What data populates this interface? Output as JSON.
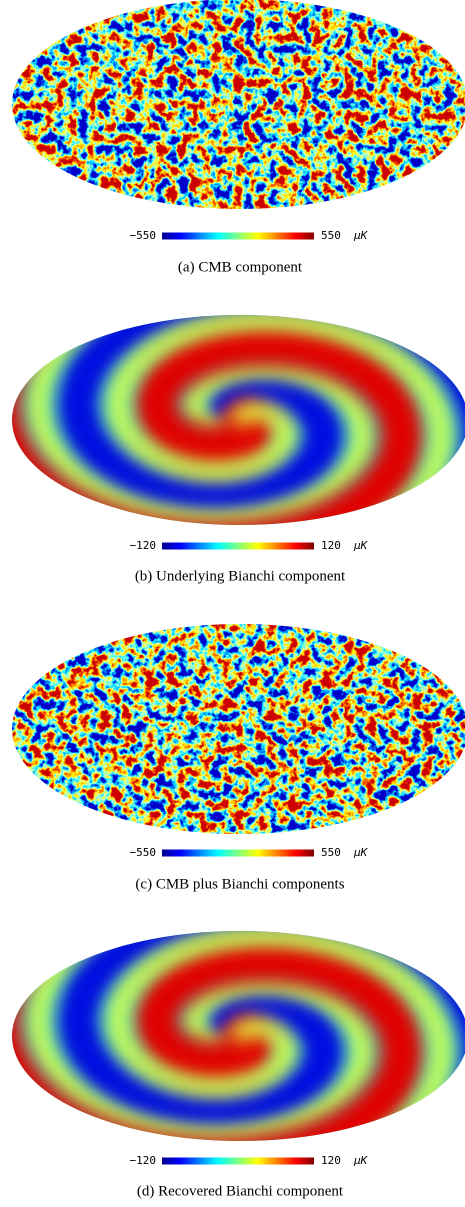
{
  "panels": [
    {
      "type": "noise",
      "seed": 3,
      "colorbar": {
        "min": "−550",
        "max": "550",
        "unit": "μK"
      },
      "caption": "(a) CMB component"
    },
    {
      "type": "spiral",
      "colorbar": {
        "min": "−120",
        "max": "120",
        "unit": "μK"
      },
      "caption": "(b) Underlying Bianchi component"
    },
    {
      "type": "noise",
      "seed": 7,
      "colorbar": {
        "min": "−550",
        "max": "550",
        "unit": "μK"
      },
      "caption": "(c) CMB plus Bianchi components"
    },
    {
      "type": "spiral",
      "colorbar": {
        "min": "−120",
        "max": "120",
        "unit": "μK"
      },
      "caption": "(d) Recovered Bianchi component"
    }
  ]
}
